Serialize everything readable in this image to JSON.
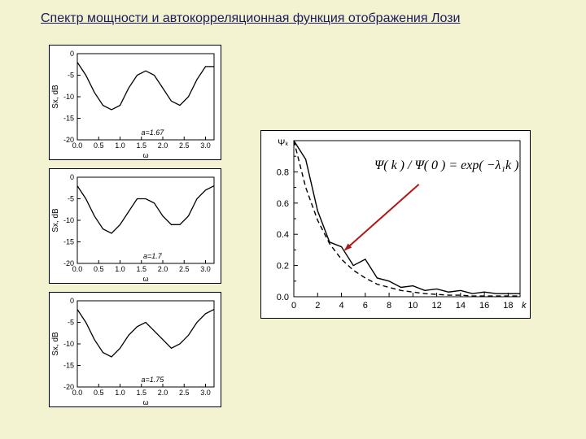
{
  "title": "Спектр мощности и автокорреляционная функция отображения Лози",
  "leftCharts": {
    "type": "line",
    "background_color": "#ffffff",
    "line_color": "#000000",
    "xlim": [
      0,
      3.2
    ],
    "ylim": [
      -20,
      0
    ],
    "xticks": [
      0.0,
      0.5,
      1.0,
      1.5,
      2.0,
      2.5,
      3.0
    ],
    "yticks": [
      -20,
      -15,
      -10,
      -5,
      0
    ],
    "xlabel": "ω",
    "ylabel_prefix": "S",
    "ylabel_suffix": ", dB",
    "panels": [
      {
        "param_label": "a=1.67",
        "x": [
          0,
          0.2,
          0.4,
          0.6,
          0.8,
          1.0,
          1.2,
          1.4,
          1.6,
          1.8,
          2.0,
          2.2,
          2.4,
          2.6,
          2.8,
          3.0,
          3.2
        ],
        "y": [
          -2,
          -5,
          -9,
          -12,
          -13,
          -12,
          -8,
          -5,
          -4,
          -5,
          -8,
          -11,
          -12,
          -10,
          -6,
          -3,
          -3
        ]
      },
      {
        "param_label": "a=1.7",
        "x": [
          0,
          0.2,
          0.4,
          0.6,
          0.8,
          1.0,
          1.2,
          1.4,
          1.6,
          1.8,
          2.0,
          2.2,
          2.4,
          2.6,
          2.8,
          3.0,
          3.2
        ],
        "y": [
          -2,
          -5,
          -9,
          -12,
          -13,
          -11,
          -8,
          -5,
          -5,
          -6,
          -9,
          -11,
          -11,
          -9,
          -5,
          -3,
          -2
        ]
      },
      {
        "param_label": "a=1.75",
        "x": [
          0,
          0.2,
          0.4,
          0.6,
          0.8,
          1.0,
          1.2,
          1.4,
          1.6,
          1.8,
          2.0,
          2.2,
          2.4,
          2.6,
          2.8,
          3.0,
          3.2
        ],
        "y": [
          -2,
          -5,
          -9,
          -12,
          -13,
          -11,
          -8,
          -6,
          -5,
          -7,
          -9,
          -11,
          -10,
          -8,
          -5,
          -3,
          -2
        ]
      }
    ]
  },
  "rightChart": {
    "type": "line",
    "background_color": "#ffffff",
    "solid_color": "#000000",
    "dash_color": "#000000",
    "xlim": [
      0,
      19
    ],
    "ylim": [
      0,
      1.0
    ],
    "xticks": [
      0,
      2,
      4,
      6,
      8,
      10,
      12,
      14,
      16,
      18
    ],
    "yticks": [
      0.0,
      0.2,
      0.4,
      0.6,
      0.8
    ],
    "ylabel": "Ψₖ",
    "xlabel": "k",
    "formula": "Ψ( k ) / Ψ( 0 ) = exp( −λ₁k )",
    "solid": {
      "x": [
        0,
        1,
        2,
        3,
        4,
        5,
        6,
        7,
        8,
        9,
        10,
        11,
        12,
        13,
        14,
        15,
        16,
        17,
        18,
        19
      ],
      "y": [
        1.0,
        0.88,
        0.55,
        0.35,
        0.32,
        0.2,
        0.24,
        0.12,
        0.1,
        0.06,
        0.07,
        0.04,
        0.05,
        0.03,
        0.04,
        0.02,
        0.03,
        0.02,
        0.02,
        0.02
      ]
    },
    "dash": {
      "x": [
        0,
        1,
        2,
        3,
        4,
        5,
        6,
        7,
        8,
        9,
        10,
        11,
        12,
        13,
        14,
        15,
        16,
        17,
        18,
        19
      ],
      "y": [
        1.0,
        0.7,
        0.49,
        0.34,
        0.24,
        0.17,
        0.12,
        0.08,
        0.06,
        0.04,
        0.03,
        0.02,
        0.015,
        0.01,
        0.01,
        0.005,
        0.005,
        0.005,
        0.005,
        0.005
      ]
    },
    "arrow": {
      "from": [
        8,
        2.5
      ],
      "to": [
        4,
        6
      ],
      "color": "#b01818"
    }
  }
}
